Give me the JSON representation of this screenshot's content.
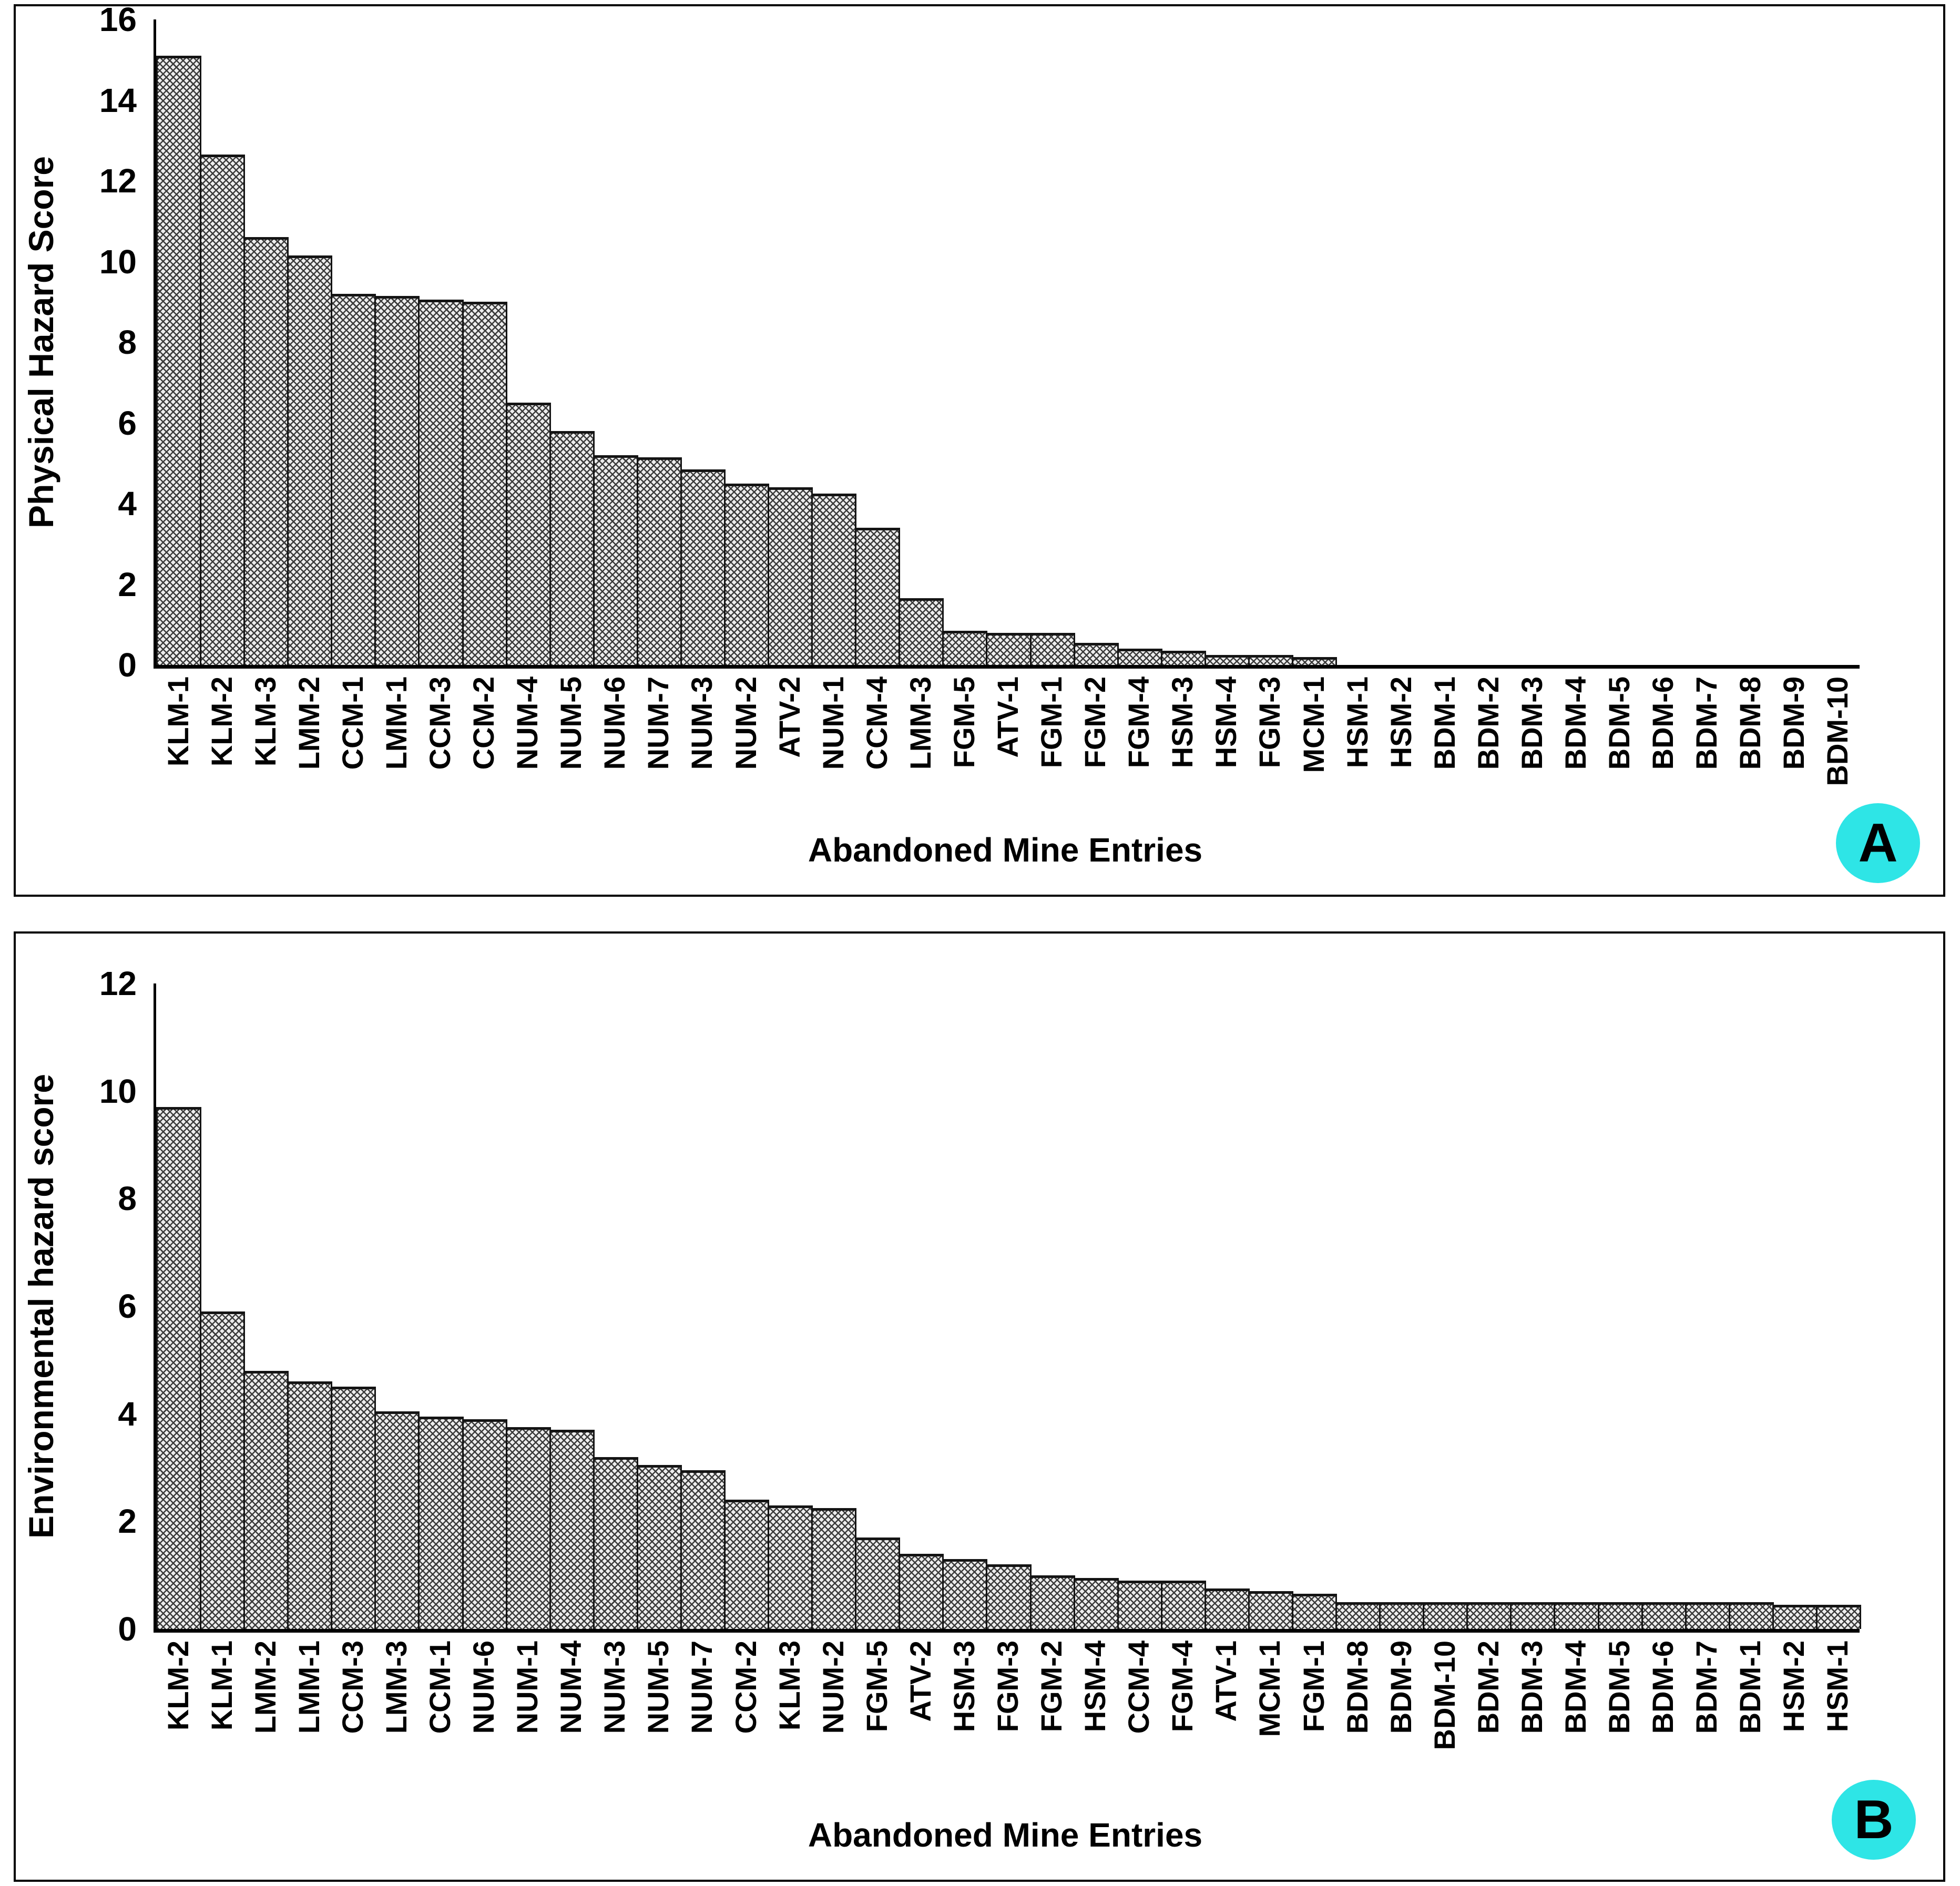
{
  "figure": {
    "badge_color": "#2ee5e6",
    "background": "#ffffff",
    "bar_style": "gray-crosshatch-black-outline"
  },
  "chart_data": [
    {
      "type": "bar",
      "badge": "A",
      "title": "",
      "ylabel": "Physical Hazard Score",
      "xlabel": "Abandoned Mine Entries",
      "ylim": [
        0,
        16
      ],
      "yticks": [
        16,
        14,
        12,
        10,
        8,
        6,
        4,
        2,
        0
      ],
      "grid": "off",
      "legend": "none",
      "categories": [
        "KLM-1",
        "KLM-2",
        "KLM-3",
        "LMM-2",
        "CCM-1",
        "LMM-1",
        "CCM-3",
        "CCM-2",
        "NUM-4",
        "NUM-5",
        "NUM-6",
        "NUM-7",
        "NUM-3",
        "NUM-2",
        "ATV-2",
        "NUM-1",
        "CCM-4",
        "LMM-3",
        "FGM-5",
        "ATV-1",
        "FGM-1",
        "FGM-2",
        "FGM-4",
        "HSM-3",
        "HSM-4",
        "FGM-3",
        "MCM-1",
        "HSM-1",
        "HSM-2",
        "BDM-1",
        "BDM-2",
        "BDM-3",
        "BDM-4",
        "BDM-5",
        "BDM-6",
        "BDM-7",
        "BDM-8",
        "BDM-9",
        "BDM-10"
      ],
      "values": [
        15.1,
        12.65,
        10.6,
        10.15,
        9.2,
        9.15,
        9.05,
        9.0,
        6.5,
        5.8,
        5.2,
        5.15,
        4.85,
        4.5,
        4.4,
        4.25,
        3.4,
        1.65,
        0.85,
        0.8,
        0.8,
        0.55,
        0.4,
        0.35,
        0.25,
        0.25,
        0.2,
        0,
        0,
        0,
        0,
        0,
        0,
        0,
        0,
        0,
        0,
        0,
        0
      ]
    },
    {
      "type": "bar",
      "badge": "B",
      "title": "",
      "ylabel": "Environmental hazard score",
      "xlabel": "Abandoned Mine Entries",
      "ylim": [
        0,
        12
      ],
      "yticks": [
        12,
        10,
        8,
        6,
        4,
        2,
        0
      ],
      "grid": "off",
      "legend": "none",
      "categories": [
        "KLM-2",
        "KLM-1",
        "LMM-2",
        "LMM-1",
        "CCM-3",
        "LMM-3",
        "CCM-1",
        "NUM-6",
        "NUM-1",
        "NUM-4",
        "NUM-3",
        "NUM-5",
        "NUM-7",
        "CCM-2",
        "KLM-3",
        "NUM-2",
        "FGM-5",
        "ATV-2",
        "HSM-3",
        "FGM-3",
        "FGM-2",
        "HSM-4",
        "CCM-4",
        "FGM-4",
        "ATV-1",
        "MCM-1",
        "FGM-1",
        "BDM-8",
        "BDM-9",
        "BDM-10",
        "BDM-2",
        "BDM-3",
        "BDM-4",
        "BDM-5",
        "BDM-6",
        "BDM-7",
        "BDM-1",
        "HSM-2",
        "HSM-1"
      ],
      "values": [
        9.7,
        5.9,
        4.8,
        4.6,
        4.5,
        4.05,
        3.95,
        3.9,
        3.75,
        3.7,
        3.2,
        3.05,
        2.95,
        2.4,
        2.3,
        2.25,
        1.7,
        1.4,
        1.3,
        1.2,
        1.0,
        0.95,
        0.9,
        0.9,
        0.75,
        0.7,
        0.65,
        0.5,
        0.5,
        0.5,
        0.5,
        0.5,
        0.5,
        0.5,
        0.5,
        0.5,
        0.5,
        0.45,
        0.45
      ]
    }
  ]
}
